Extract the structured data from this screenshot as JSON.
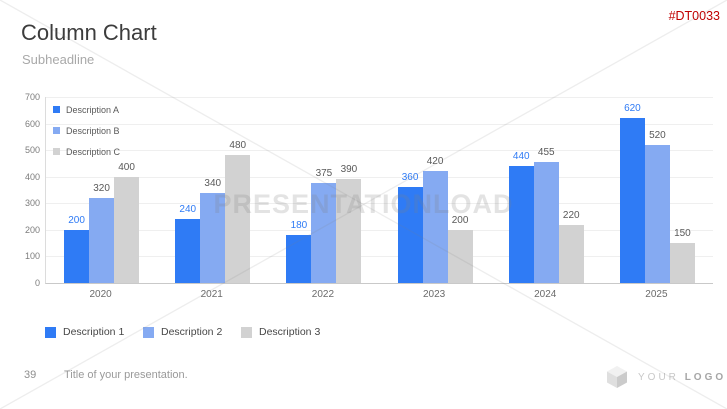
{
  "slide": {
    "title": "Column Chart",
    "subtitle": "Subheadline",
    "product_code": "#DT0033",
    "footer": {
      "page_number": "39",
      "title": "Title of your presentation."
    },
    "logo": {
      "word1": "YOUR",
      "word2": "LOGO",
      "icon": "cube-3d-icon"
    }
  },
  "watermark": {
    "text": "PRESENTATIONLOAD"
  },
  "colors": {
    "series1_blue": "#2F7BF5",
    "series2_light_blue": "#85AAF2",
    "series3_gray": "#D2D2D2",
    "product_code_red": "#C00000",
    "gridline": "#EFEFEF"
  },
  "chart_data": {
    "type": "bar",
    "categories": [
      "2020",
      "2021",
      "2022",
      "2023",
      "2024",
      "2025"
    ],
    "series": [
      {
        "name": "Description A",
        "color": "#2F7BF5",
        "label_color": "#2F7BF5",
        "values": [
          200,
          240,
          180,
          360,
          440,
          620
        ]
      },
      {
        "name": "Description B",
        "color": "#85AAF2",
        "label_color": "#595959",
        "values": [
          320,
          340,
          375,
          420,
          455,
          520
        ]
      },
      {
        "name": "Description C",
        "color": "#D2D2D2",
        "label_color": "#595959",
        "values": [
          400,
          480,
          390,
          200,
          220,
          150
        ]
      }
    ],
    "ylim": [
      0,
      700
    ],
    "yticks": [
      0,
      100,
      200,
      300,
      400,
      500,
      600,
      700
    ],
    "grid": true,
    "data_labels": true,
    "legend_position": "top-left-inside"
  },
  "bottom_legend": {
    "items": [
      {
        "label": "Description 1",
        "color": "#2F7BF5"
      },
      {
        "label": "Description 2",
        "color": "#85AAF2"
      },
      {
        "label": "Description 3",
        "color": "#D2D2D2"
      }
    ]
  }
}
